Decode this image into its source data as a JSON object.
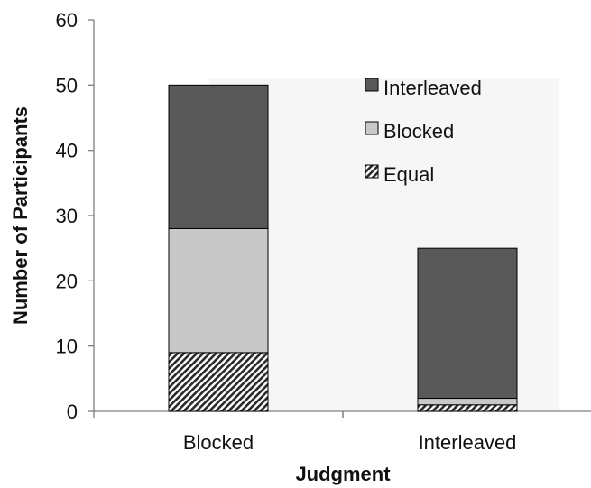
{
  "chart_data": {
    "type": "bar",
    "stacked": true,
    "title": "",
    "xlabel": "Judgment",
    "ylabel": "Number of Participants",
    "categories": [
      "Blocked",
      "Interleaved"
    ],
    "series": [
      {
        "name": "Equal",
        "values": [
          9,
          1
        ],
        "color": "#333333",
        "pattern": "diagonal-hatch"
      },
      {
        "name": "Blocked",
        "values": [
          19,
          1
        ],
        "color": "#c8c8c8",
        "pattern": "solid"
      },
      {
        "name": "Interleaved",
        "values": [
          22,
          23
        ],
        "color": "#595959",
        "pattern": "solid"
      }
    ],
    "ylim": [
      0,
      60
    ],
    "yticks": [
      "0",
      "10",
      "20",
      "30",
      "40",
      "50",
      "60"
    ],
    "grid": false,
    "legend_position": "top-right",
    "legend_order": [
      "Interleaved",
      "Blocked",
      "Equal"
    ]
  }
}
